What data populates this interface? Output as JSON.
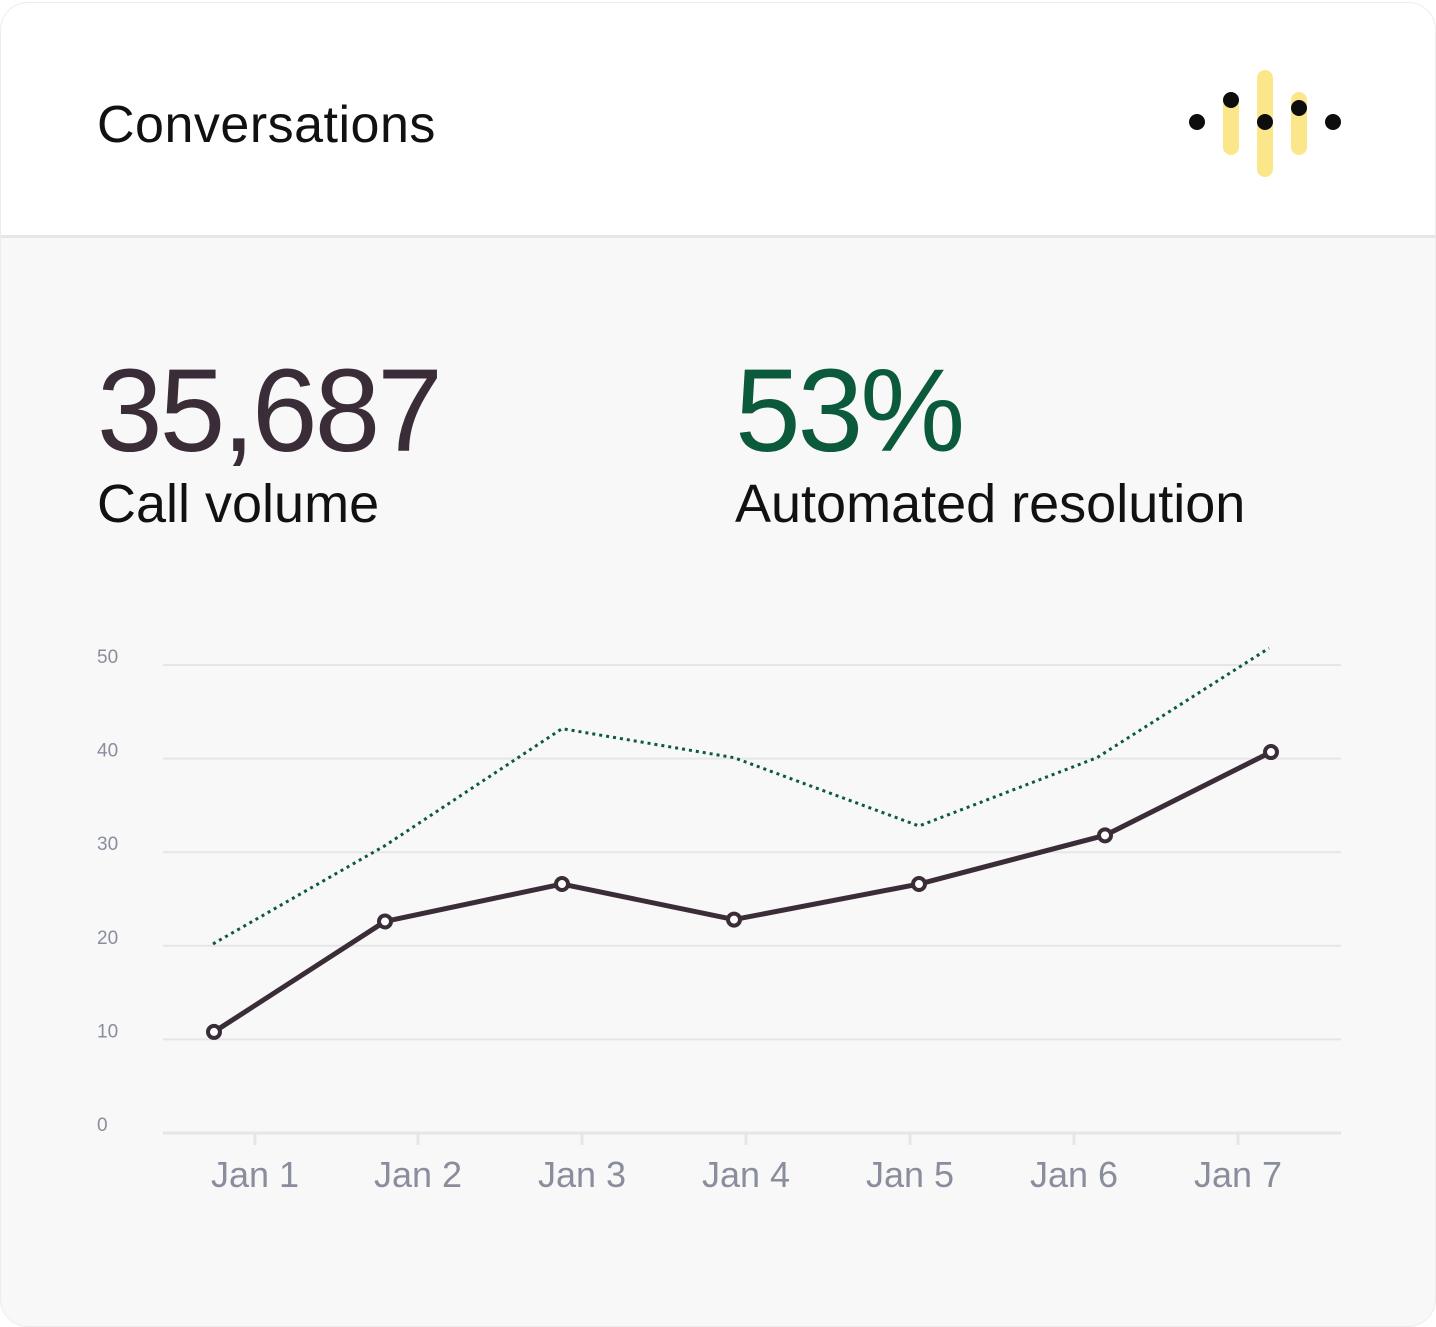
{
  "header": {
    "title": "Conversations",
    "logo_icon": "voice-waveform-logo",
    "logo_colors": {
      "bars": "#fce68a",
      "dots": "#0d0d0d"
    }
  },
  "metrics": [
    {
      "value": "35,687",
      "label": "Call volume",
      "color": "#3a2d38"
    },
    {
      "value": "53%",
      "label": "Automated resolution",
      "color": "#0b5a3c"
    }
  ],
  "chart_data": {
    "type": "line",
    "categories": [
      "Jan 1",
      "Jan 2",
      "Jan 3",
      "Jan 4",
      "Jan 5",
      "Jan 6",
      "Jan 7"
    ],
    "yticks": [
      "0",
      "10",
      "20",
      "30",
      "40",
      "50"
    ],
    "ylim": [
      0,
      50
    ],
    "grid": true,
    "series": [
      {
        "style": "solid",
        "markers": true,
        "color": "#3a2d38",
        "values": [
          10.8,
          22.6,
          26.6,
          22.8,
          26.6,
          31.8,
          40.7
        ]
      },
      {
        "style": "dotted",
        "markers": false,
        "color": "#0b5a3c",
        "values": [
          20.2,
          30.7,
          43.2,
          40.1,
          32.8,
          40.1,
          51.8
        ]
      }
    ]
  }
}
